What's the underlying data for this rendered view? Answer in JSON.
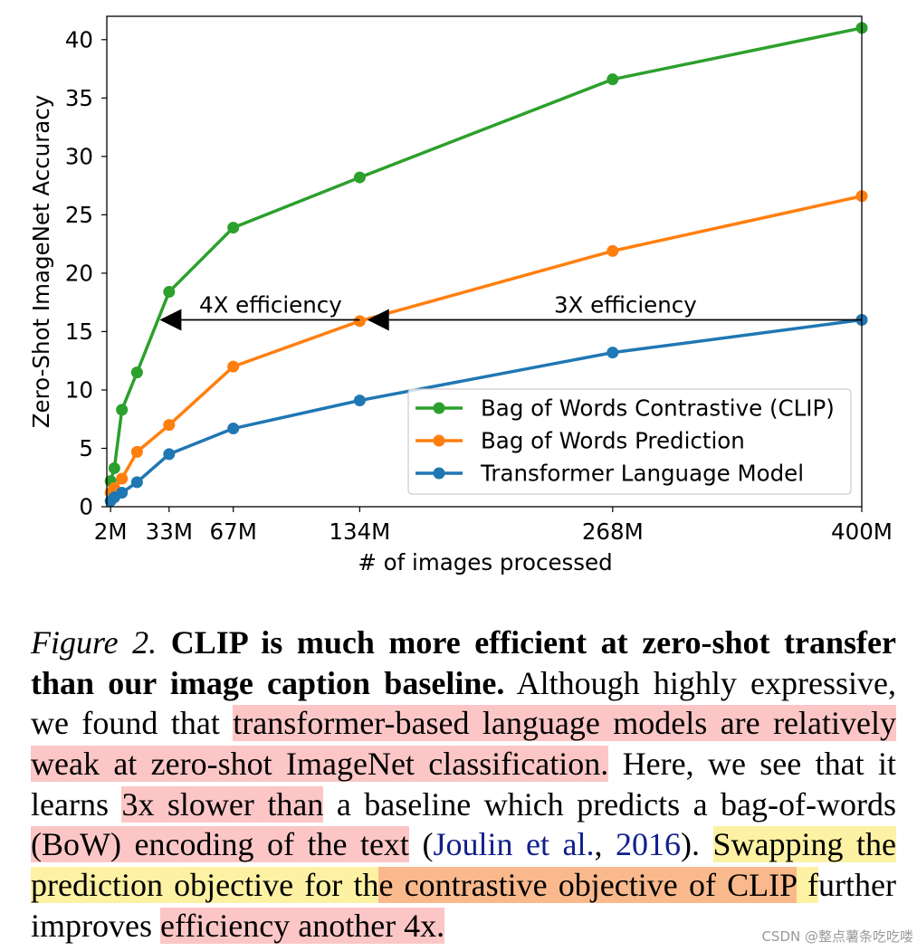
{
  "chart_data": {
    "type": "line",
    "title": "",
    "xlabel": "# of images processed",
    "ylabel": "Zero-Shot ImageNet Accuracy",
    "x": [
      2,
      4,
      8,
      16,
      33,
      67,
      134,
      268,
      400
    ],
    "xlim": [
      0,
      400
    ],
    "ylim": [
      0,
      42
    ],
    "xticks": [
      2,
      33,
      67,
      134,
      268,
      400
    ],
    "xtick_labels": [
      "2M",
      "33M",
      "67M",
      "134M",
      "268M",
      "400M"
    ],
    "yticks": [
      0,
      5,
      10,
      15,
      20,
      25,
      30,
      35,
      40
    ],
    "ytick_labels": [
      "0",
      "5",
      "10",
      "15",
      "20",
      "25",
      "30",
      "35",
      "40"
    ],
    "grid": false,
    "legend": "lower right",
    "series": [
      {
        "name": "Bag of Words Contrastive (CLIP)",
        "color": "#2ca02c",
        "values": [
          2.2,
          3.3,
          8.3,
          11.5,
          18.4,
          23.9,
          28.2,
          36.6,
          41.0
        ]
      },
      {
        "name": "Bag of Words Prediction",
        "color": "#ff7f0e",
        "values": [
          1.2,
          1.6,
          2.4,
          4.7,
          7.0,
          12.0,
          15.9,
          21.9,
          26.6
        ]
      },
      {
        "name": "Transformer Language Model",
        "color": "#1f77b4",
        "values": [
          0.5,
          0.8,
          1.2,
          2.1,
          4.5,
          6.7,
          9.1,
          13.2,
          16.0
        ]
      }
    ],
    "annotations": [
      {
        "text": "4X efficiency",
        "from": 134,
        "to": 28,
        "y": 16.0
      },
      {
        "text": "3X efficiency",
        "from": 400,
        "to": 138,
        "y": 16.0
      }
    ]
  },
  "caption": {
    "lines": [
      {
        "align": "justify",
        "segments": [
          {
            "text": "Figure 2.",
            "style": "italic"
          },
          {
            "text": " CLIP is much more efficient at zero-shot transfer",
            "style": "bold"
          }
        ]
      },
      {
        "align": "justify",
        "segments": [
          {
            "text": "than our image caption baseline.",
            "style": "bold"
          },
          {
            "text": " Although highly expressive,"
          }
        ]
      },
      {
        "align": "justify",
        "segments": [
          {
            "text": "we found that "
          },
          {
            "text": "transformer-based language models are relatively",
            "hl": "pink"
          }
        ]
      },
      {
        "align": "justify",
        "segments": [
          {
            "text": "weak at zero-shot ImageNet classification.",
            "hl": "pink"
          },
          {
            "text": " Here, we see that it"
          }
        ]
      },
      {
        "align": "justify",
        "segments": [
          {
            "text": "learns "
          },
          {
            "text": "3x slower than",
            "hl": "pink"
          },
          {
            "text": " a baseline which predicts a bag-of-words"
          }
        ]
      },
      {
        "align": "justify",
        "segments": [
          {
            "text": "(BoW) encoding of the text",
            "hl": "pink"
          },
          {
            "text": " ("
          },
          {
            "text": "Joulin et al.",
            "link": true
          },
          {
            "text": ", "
          },
          {
            "text": "2016",
            "link": true
          },
          {
            "text": "). "
          },
          {
            "text": "Swapping the",
            "hl": "yellow"
          }
        ]
      },
      {
        "align": "justify",
        "segments": [
          {
            "text": "prediction objective for th",
            "hl": "yellow"
          },
          {
            "text": "e contrastive objective of CLIP",
            "hl": "orange"
          },
          {
            "text": " f",
            "hl": "yellow"
          },
          {
            "text": "urther"
          }
        ]
      },
      {
        "align": "left",
        "segments": [
          {
            "text": "improves "
          },
          {
            "text": "efficiency another 4x.",
            "hl": "pink"
          }
        ]
      }
    ]
  },
  "colors": {
    "highlight_pink": "#fcc6c6",
    "highlight_yellow": "#fdf1a3",
    "highlight_orange": "#f9b98c",
    "citation": "#10208a"
  },
  "watermark": "CSDN @整点薯条吃吃喽"
}
